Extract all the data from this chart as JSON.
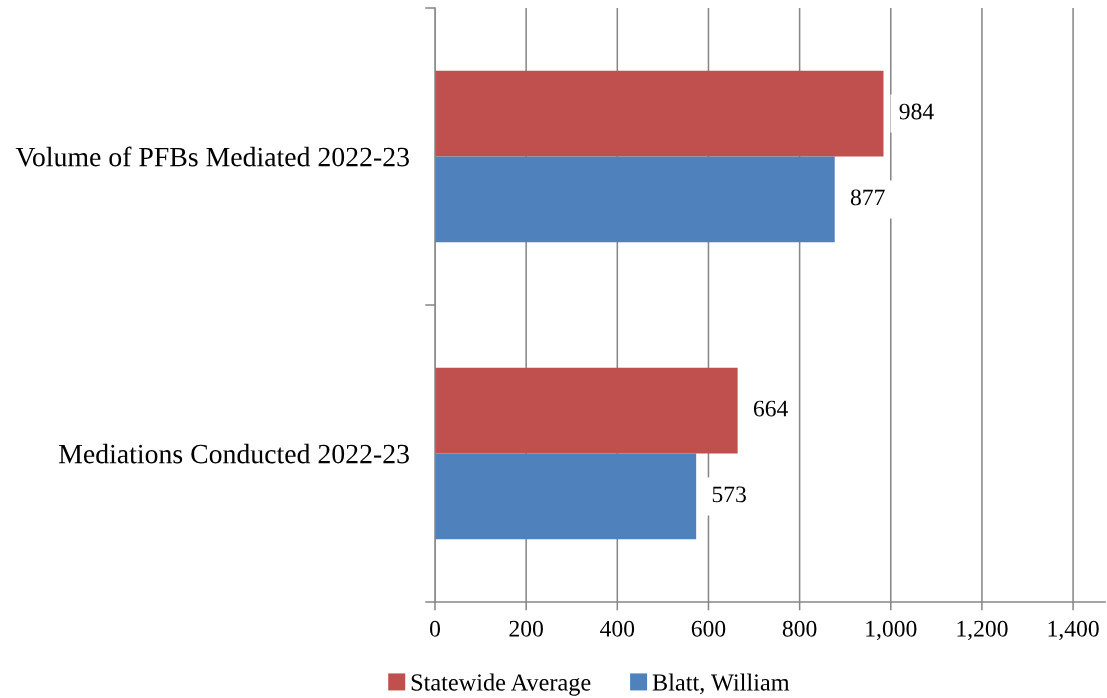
{
  "chart_data": {
    "type": "bar",
    "orientation": "horizontal",
    "categories": [
      "Volume of PFBs Mediated 2022-23",
      "Mediations Conducted 2022-23"
    ],
    "series": [
      {
        "name": "Statewide Average",
        "color": "#c0504d",
        "values": [
          984,
          664
        ]
      },
      {
        "name": "Blatt, William",
        "color": "#4f81bd",
        "values": [
          877,
          573
        ]
      }
    ],
    "xlim": [
      0,
      1470
    ],
    "xticks": [
      0,
      200,
      400,
      600,
      800,
      {
        "value": 1000,
        "label": "1,000"
      },
      {
        "value": 1200,
        "label": "1,200"
      },
      {
        "value": 1400,
        "label": "1,400"
      }
    ],
    "grid": "x",
    "legend": "bottom",
    "data_labels": true
  }
}
